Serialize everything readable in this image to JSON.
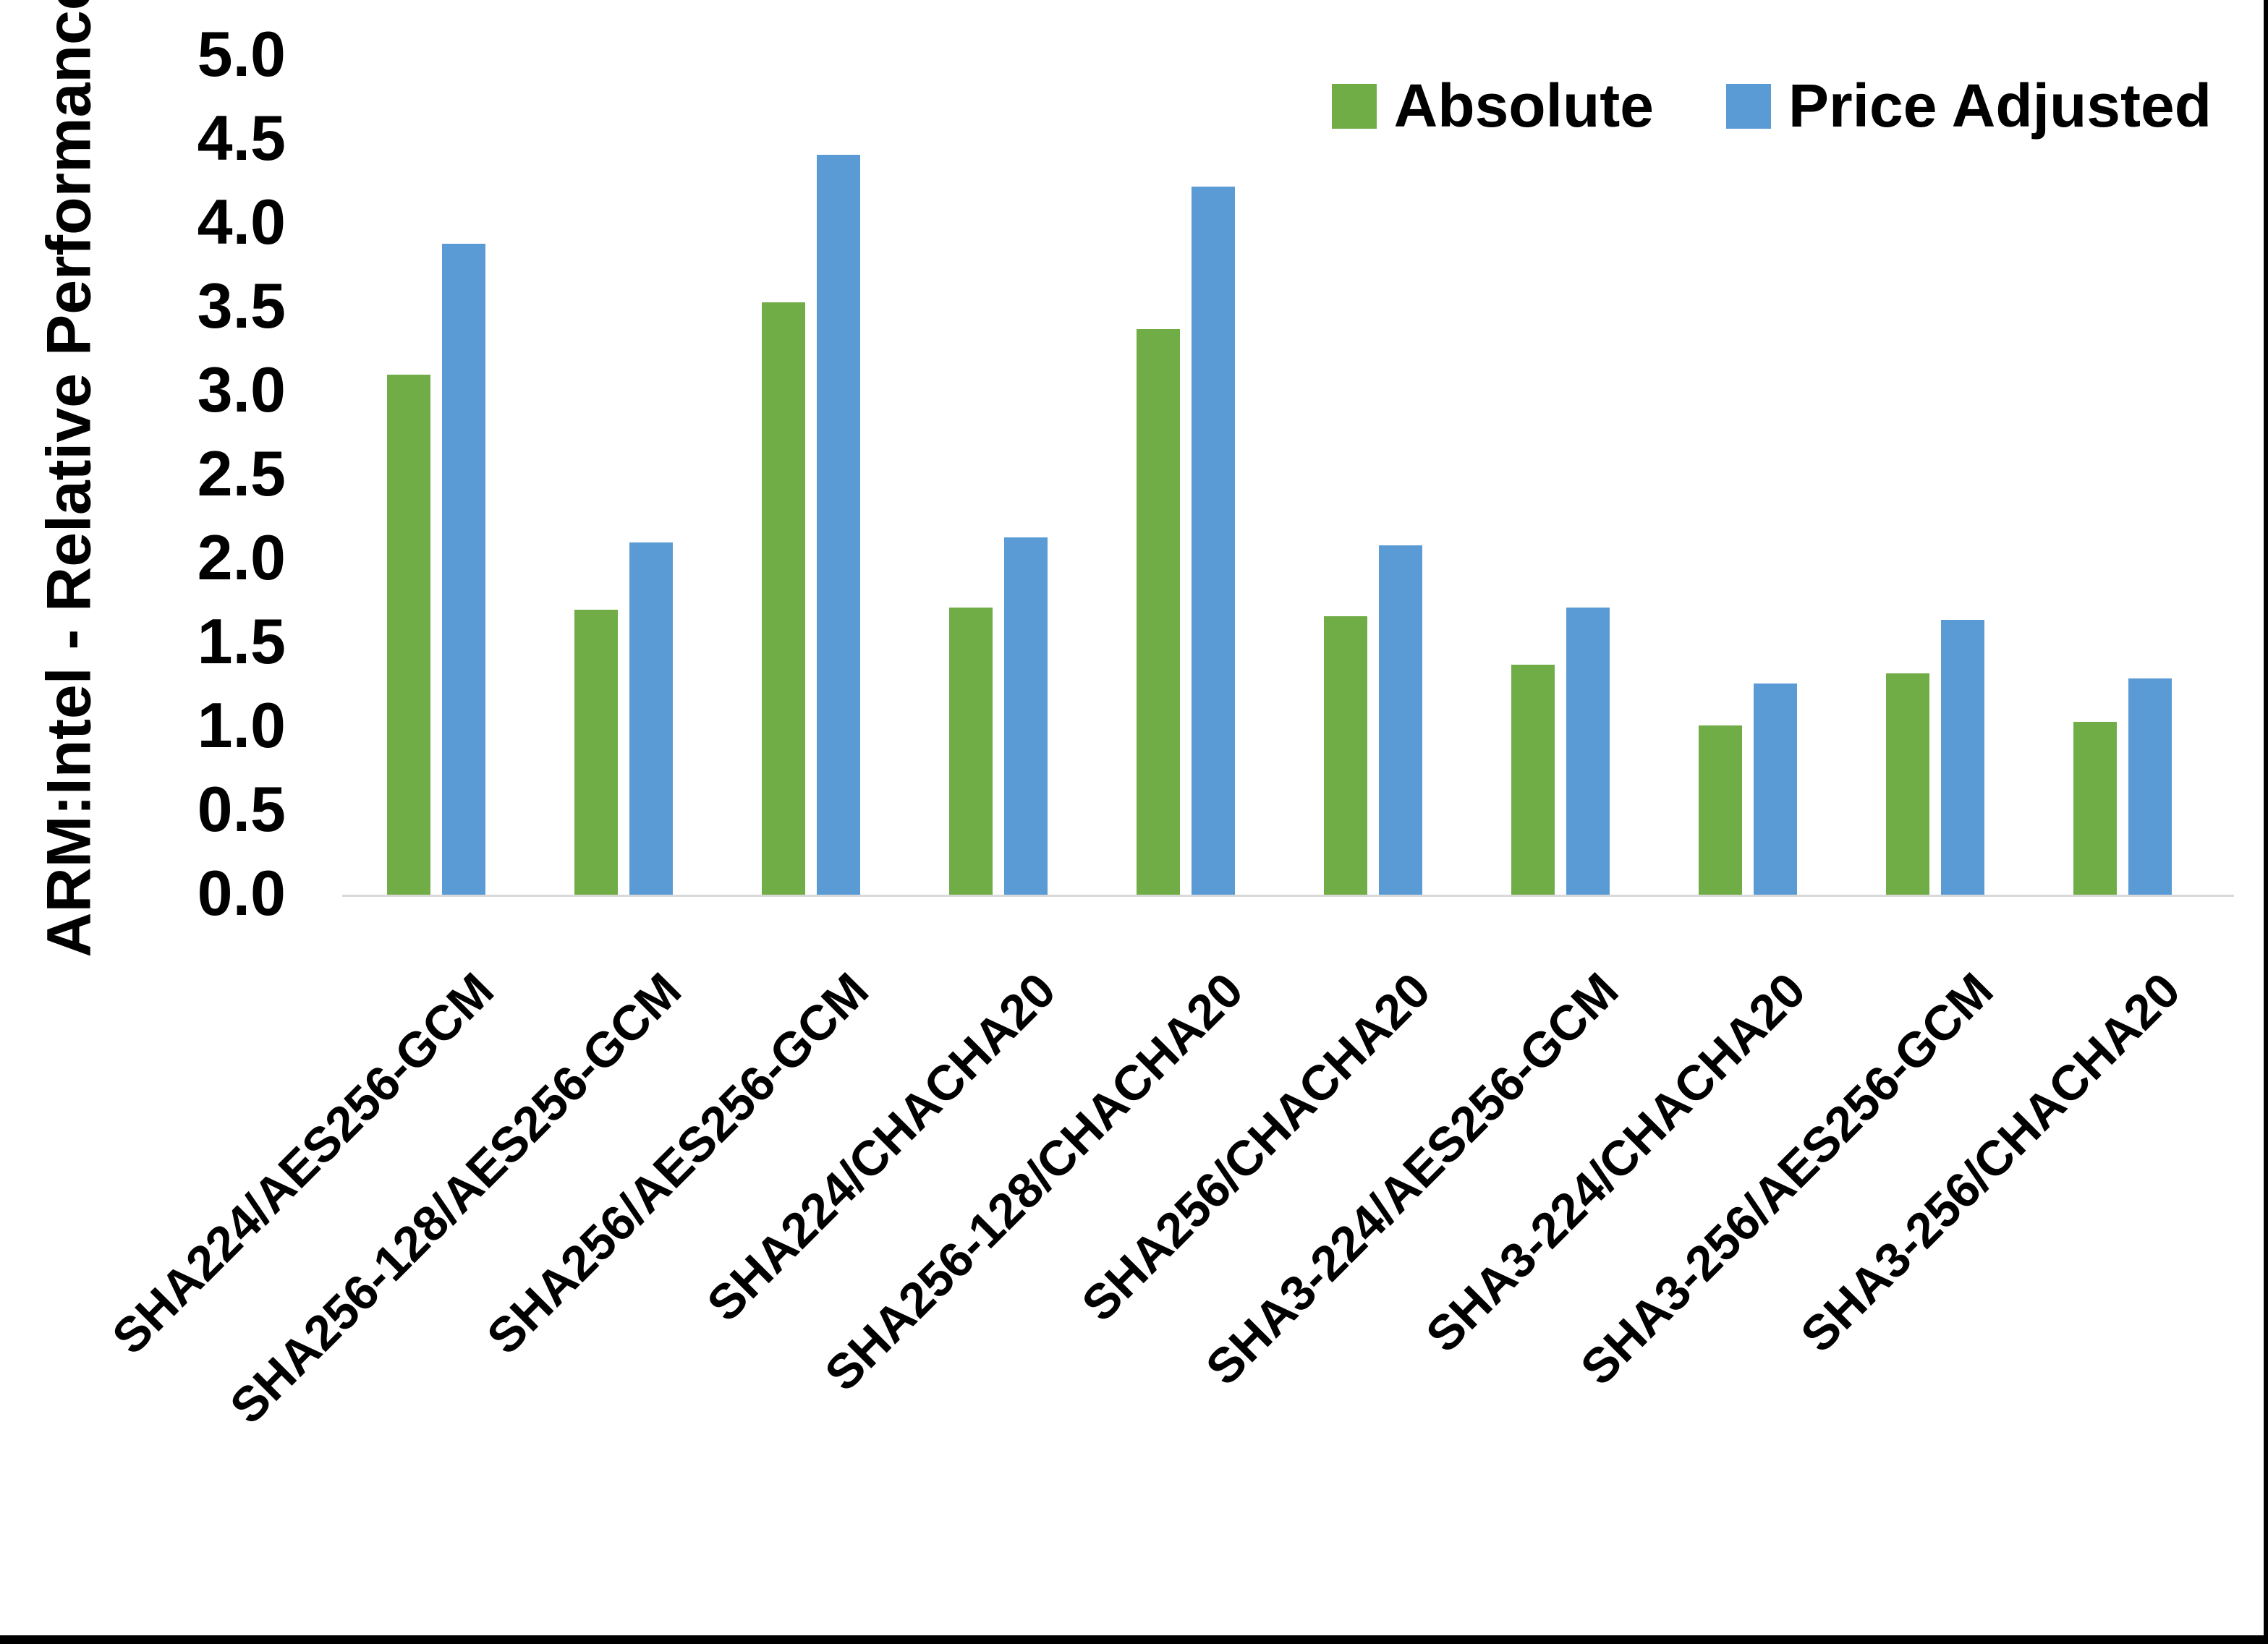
{
  "chart_data": {
    "type": "bar",
    "title": "",
    "xlabel": "",
    "ylabel": "ARM:Intel - Relative Performance",
    "ylim": [
      0,
      5
    ],
    "ytick_step": 0.5,
    "ytick_labels": [
      "0.0",
      "0.5",
      "1.0",
      "1.5",
      "2.0",
      "2.5",
      "3.0",
      "3.5",
      "4.0",
      "4.5",
      "5.0"
    ],
    "grid": false,
    "legend_position": "top-right",
    "axis_line_color": "#D9D9D9",
    "categories": [
      "SHA224/AES256-GCM",
      "SHA256-128/AES256-GCM",
      "SHA256/AES256-GCM",
      "SHA224/CHACHA20",
      "SHA256-128/CHACHA20",
      "SHA256/CHACHA20",
      "SHA3-224/AES256-GCM",
      "SHA3-224/CHACHA20",
      "SHA3-256/AES256-GCM",
      "SHA3-256/CHACHA20"
    ],
    "series": [
      {
        "name": "Absolute",
        "color": "#70AD47",
        "values": [
          3.1,
          1.7,
          3.53,
          1.71,
          3.37,
          1.66,
          1.37,
          1.01,
          1.32,
          1.03
        ]
      },
      {
        "name": "Price Adjusted",
        "color": "#5B9BD5",
        "values": [
          3.88,
          2.1,
          4.41,
          2.13,
          4.22,
          2.08,
          1.71,
          1.26,
          1.64,
          1.29
        ]
      }
    ]
  },
  "frame": {
    "right_border_color": "#000000",
    "bottom_border_color": "#000000"
  }
}
